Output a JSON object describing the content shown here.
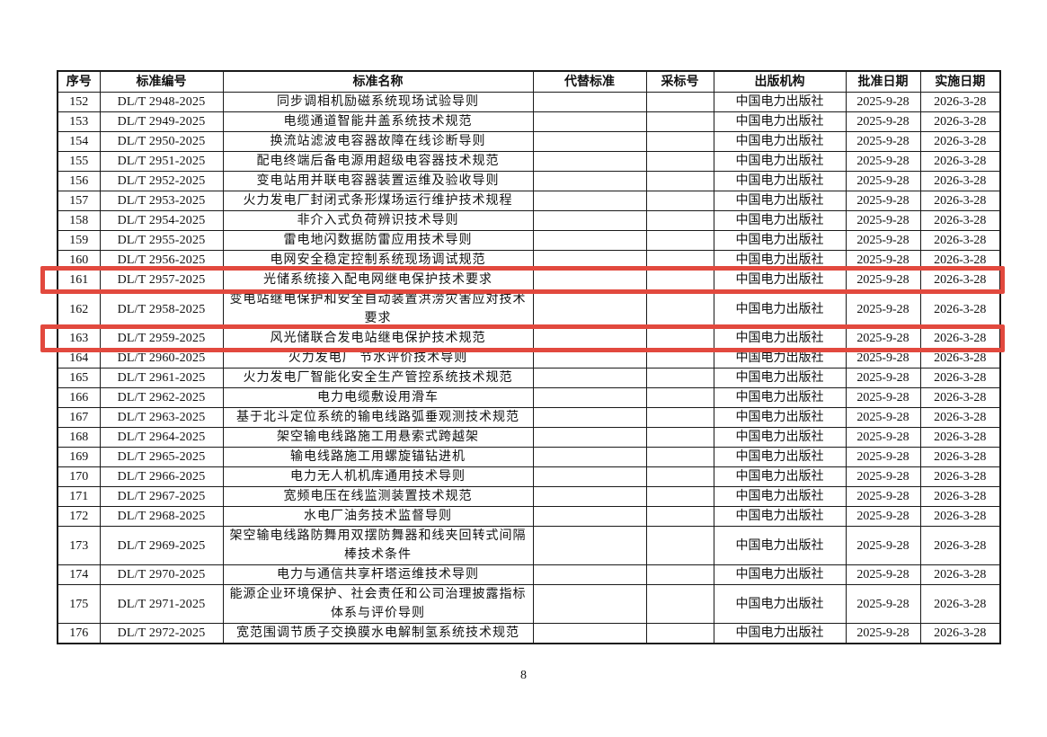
{
  "page": {
    "number": "8"
  },
  "highlight_color": "#e2493e",
  "table": {
    "headers": [
      "序号",
      "标准编号",
      "标准名称",
      "代替标准",
      "采标号",
      "出版机构",
      "批准日期",
      "实施日期"
    ],
    "rows": [
      {
        "seq": "152",
        "code": "DL/T 2948-2025",
        "name": "同步调相机励磁系统现场试验导则",
        "replaced": "",
        "adopted": "",
        "publisher": "中国电力出版社",
        "approval": "2025-9-28",
        "implementation": "2026-3-28",
        "highlighted": false
      },
      {
        "seq": "153",
        "code": "DL/T 2949-2025",
        "name": "电缆通道智能井盖系统技术规范",
        "replaced": "",
        "adopted": "",
        "publisher": "中国电力出版社",
        "approval": "2025-9-28",
        "implementation": "2026-3-28",
        "highlighted": false
      },
      {
        "seq": "154",
        "code": "DL/T 2950-2025",
        "name": "换流站滤波电容器故障在线诊断导则",
        "replaced": "",
        "adopted": "",
        "publisher": "中国电力出版社",
        "approval": "2025-9-28",
        "implementation": "2026-3-28",
        "highlighted": false
      },
      {
        "seq": "155",
        "code": "DL/T 2951-2025",
        "name": "配电终端后备电源用超级电容器技术规范",
        "replaced": "",
        "adopted": "",
        "publisher": "中国电力出版社",
        "approval": "2025-9-28",
        "implementation": "2026-3-28",
        "highlighted": false
      },
      {
        "seq": "156",
        "code": "DL/T 2952-2025",
        "name": "变电站用并联电容器装置运维及验收导则",
        "replaced": "",
        "adopted": "",
        "publisher": "中国电力出版社",
        "approval": "2025-9-28",
        "implementation": "2026-3-28",
        "highlighted": false
      },
      {
        "seq": "157",
        "code": "DL/T 2953-2025",
        "name": "火力发电厂封闭式条形煤场运行维护技术规程",
        "replaced": "",
        "adopted": "",
        "publisher": "中国电力出版社",
        "approval": "2025-9-28",
        "implementation": "2026-3-28",
        "highlighted": false
      },
      {
        "seq": "158",
        "code": "DL/T 2954-2025",
        "name": "非介入式负荷辨识技术导则",
        "replaced": "",
        "adopted": "",
        "publisher": "中国电力出版社",
        "approval": "2025-9-28",
        "implementation": "2026-3-28",
        "highlighted": false
      },
      {
        "seq": "159",
        "code": "DL/T 2955-2025",
        "name": "雷电地闪数据防雷应用技术导则",
        "replaced": "",
        "adopted": "",
        "publisher": "中国电力出版社",
        "approval": "2025-9-28",
        "implementation": "2026-3-28",
        "highlighted": false
      },
      {
        "seq": "160",
        "code": "DL/T 2956-2025",
        "name": "电网安全稳定控制系统现场调试规范",
        "replaced": "",
        "adopted": "",
        "publisher": "中国电力出版社",
        "approval": "2025-9-28",
        "implementation": "2026-3-28",
        "highlighted": false
      },
      {
        "seq": "161",
        "code": "DL/T 2957-2025",
        "name": "光储系统接入配电网继电保护技术要求",
        "replaced": "",
        "adopted": "",
        "publisher": "中国电力出版社",
        "approval": "2025-9-28",
        "implementation": "2026-3-28",
        "highlighted": true
      },
      {
        "seq": "162",
        "code": "DL/T 2958-2025",
        "name": "变电站继电保护和安全自动装置洪涝灾害应对技术\n要求",
        "replaced": "",
        "adopted": "",
        "publisher": "中国电力出版社",
        "approval": "2025-9-28",
        "implementation": "2026-3-28",
        "highlighted": false
      },
      {
        "seq": "163",
        "code": "DL/T 2959-2025",
        "name": "风光储联合发电站继电保护技术规范",
        "replaced": "",
        "adopted": "",
        "publisher": "中国电力出版社",
        "approval": "2025-9-28",
        "implementation": "2026-3-28",
        "highlighted": true
      },
      {
        "seq": "164",
        "code": "DL/T 2960-2025",
        "name": "火力发电厂 节水评价技术导则",
        "replaced": "",
        "adopted": "",
        "publisher": "中国电力出版社",
        "approval": "2025-9-28",
        "implementation": "2026-3-28",
        "highlighted": false
      },
      {
        "seq": "165",
        "code": "DL/T 2961-2025",
        "name": "火力发电厂智能化安全生产管控系统技术规范",
        "replaced": "",
        "adopted": "",
        "publisher": "中国电力出版社",
        "approval": "2025-9-28",
        "implementation": "2026-3-28",
        "highlighted": false
      },
      {
        "seq": "166",
        "code": "DL/T 2962-2025",
        "name": "电力电缆敷设用滑车",
        "replaced": "",
        "adopted": "",
        "publisher": "中国电力出版社",
        "approval": "2025-9-28",
        "implementation": "2026-3-28",
        "highlighted": false
      },
      {
        "seq": "167",
        "code": "DL/T 2963-2025",
        "name": "基于北斗定位系统的输电线路弧垂观测技术规范",
        "replaced": "",
        "adopted": "",
        "publisher": "中国电力出版社",
        "approval": "2025-9-28",
        "implementation": "2026-3-28",
        "highlighted": false
      },
      {
        "seq": "168",
        "code": "DL/T 2964-2025",
        "name": "架空输电线路施工用悬索式跨越架",
        "replaced": "",
        "adopted": "",
        "publisher": "中国电力出版社",
        "approval": "2025-9-28",
        "implementation": "2026-3-28",
        "highlighted": false
      },
      {
        "seq": "169",
        "code": "DL/T 2965-2025",
        "name": "输电线路施工用螺旋锚钻进机",
        "replaced": "",
        "adopted": "",
        "publisher": "中国电力出版社",
        "approval": "2025-9-28",
        "implementation": "2026-3-28",
        "highlighted": false
      },
      {
        "seq": "170",
        "code": "DL/T 2966-2025",
        "name": "电力无人机机库通用技术导则",
        "replaced": "",
        "adopted": "",
        "publisher": "中国电力出版社",
        "approval": "2025-9-28",
        "implementation": "2026-3-28",
        "highlighted": false
      },
      {
        "seq": "171",
        "code": "DL/T 2967-2025",
        "name": "宽频电压在线监测装置技术规范",
        "replaced": "",
        "adopted": "",
        "publisher": "中国电力出版社",
        "approval": "2025-9-28",
        "implementation": "2026-3-28",
        "highlighted": false
      },
      {
        "seq": "172",
        "code": "DL/T 2968-2025",
        "name": "水电厂油务技术监督导则",
        "replaced": "",
        "adopted": "",
        "publisher": "中国电力出版社",
        "approval": "2025-9-28",
        "implementation": "2026-3-28",
        "highlighted": false
      },
      {
        "seq": "173",
        "code": "DL/T 2969-2025",
        "name": "架空输电线路防舞用双摆防舞器和线夹回转式间隔\n棒技术条件",
        "replaced": "",
        "adopted": "",
        "publisher": "中国电力出版社",
        "approval": "2025-9-28",
        "implementation": "2026-3-28",
        "highlighted": false
      },
      {
        "seq": "174",
        "code": "DL/T 2970-2025",
        "name": "电力与通信共享杆塔运维技术导则",
        "replaced": "",
        "adopted": "",
        "publisher": "中国电力出版社",
        "approval": "2025-9-28",
        "implementation": "2026-3-28",
        "highlighted": false
      },
      {
        "seq": "175",
        "code": "DL/T 2971-2025",
        "name": "能源企业环境保护、社会责任和公司治理披露指标\n体系与评价导则",
        "replaced": "",
        "adopted": "",
        "publisher": "中国电力出版社",
        "approval": "2025-9-28",
        "implementation": "2026-3-28",
        "highlighted": false
      },
      {
        "seq": "176",
        "code": "DL/T 2972-2025",
        "name": "宽范围调节质子交换膜水电解制氢系统技术规范",
        "replaced": "",
        "adopted": "",
        "publisher": "中国电力出版社",
        "approval": "2025-9-28",
        "implementation": "2026-3-28",
        "highlighted": false
      }
    ]
  }
}
